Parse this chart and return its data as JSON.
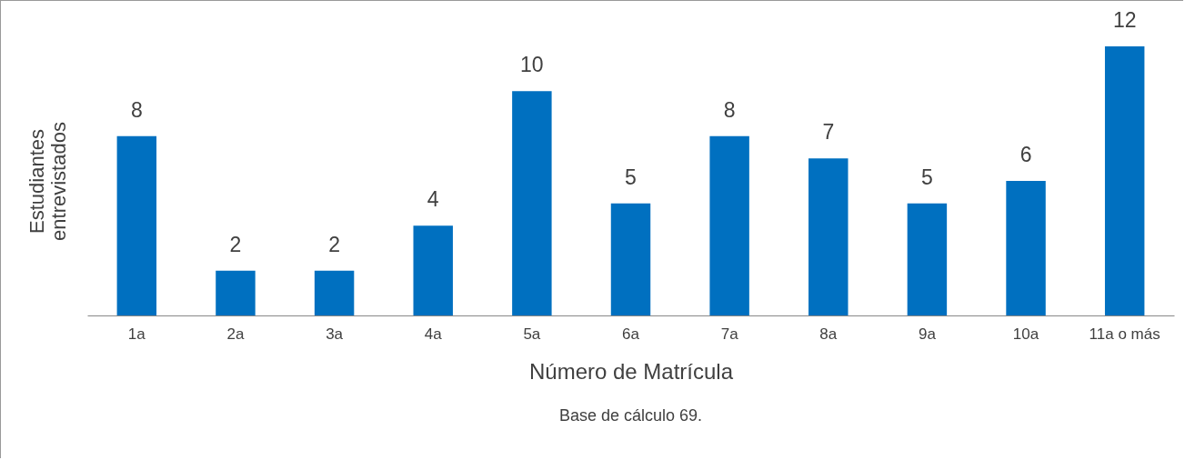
{
  "chart_data": {
    "type": "bar",
    "xlabel": "Número de Matrícula",
    "ylabel": "Estudiantes entrevistados",
    "categories": [
      "1a",
      "2a",
      "3a",
      "4a",
      "5a",
      "6a",
      "7a",
      "8a",
      "9a",
      "10a",
      "11a o más"
    ],
    "series": [
      {
        "color": "#0070c0",
        "values": [
          8,
          2,
          2,
          4,
          10,
          5,
          8,
          7,
          5,
          6,
          12
        ]
      }
    ],
    "data_labels": true,
    "grid": false,
    "annotations": [
      "Base de cálculo 69."
    ]
  }
}
